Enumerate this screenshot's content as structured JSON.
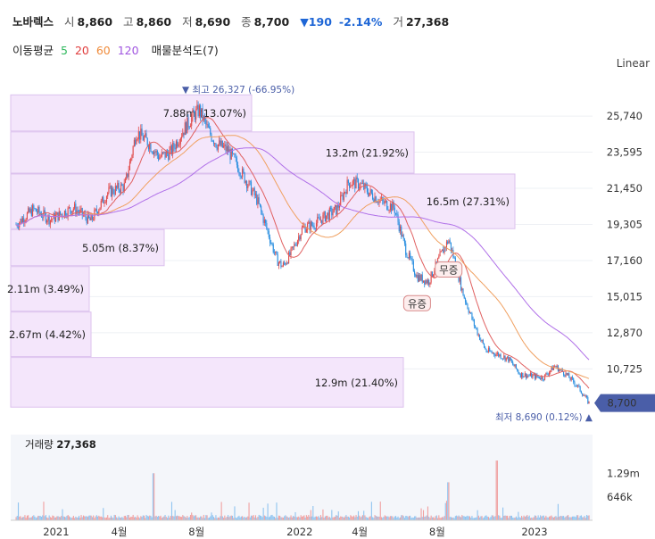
{
  "header": {
    "name": "노바렉스",
    "open_label": "시",
    "open": "8,860",
    "high_label": "고",
    "high": "8,860",
    "low_label": "저",
    "low": "8,690",
    "close_label": "종",
    "close": "8,700",
    "change": "▼190",
    "change_pct": "-2.14%",
    "volume_label": "거",
    "volume": "27,368"
  },
  "ma_legend": {
    "label": "이동평균",
    "periods": [
      "5",
      "20",
      "60",
      "120"
    ],
    "colors": [
      "#2eb85c",
      "#e03c3c",
      "#f08c3c",
      "#a055e0"
    ],
    "volume_profile_label": "매물분석도(7)"
  },
  "scale_label": "Linear",
  "colors": {
    "up": "#e04a4a",
    "down": "#2a8fe0",
    "profile": "#f4e6fb",
    "profile_border": "#dcc2ee",
    "ma20": "#e06060",
    "ma60": "#f0a060",
    "ma120": "#b070e8",
    "current_badge": "#4a5ea8"
  },
  "chart_data": {
    "type": "candlestick",
    "price_ticks": [
      "25,740",
      "23,595",
      "21,450",
      "19,305",
      "17,160",
      "15,015",
      "12,870",
      "10,725"
    ],
    "ylim": [
      8200,
      27600
    ],
    "x_ticks": [
      "2021",
      "4월",
      "8월",
      "2022",
      "4월",
      "8월",
      "2023"
    ],
    "series_close": [
      {
        "t": 0.0,
        "v": 19300
      },
      {
        "t": 0.03,
        "v": 20200
      },
      {
        "t": 0.06,
        "v": 19600
      },
      {
        "t": 0.1,
        "v": 20300
      },
      {
        "t": 0.13,
        "v": 19500
      },
      {
        "t": 0.16,
        "v": 21200
      },
      {
        "t": 0.19,
        "v": 21600
      },
      {
        "t": 0.21,
        "v": 24800
      },
      {
        "t": 0.23,
        "v": 24200
      },
      {
        "t": 0.25,
        "v": 23300
      },
      {
        "t": 0.27,
        "v": 23600
      },
      {
        "t": 0.29,
        "v": 24800
      },
      {
        "t": 0.31,
        "v": 25800
      },
      {
        "t": 0.32,
        "v": 26100
      },
      {
        "t": 0.335,
        "v": 24900
      },
      {
        "t": 0.35,
        "v": 24100
      },
      {
        "t": 0.37,
        "v": 23700
      },
      {
        "t": 0.39,
        "v": 22600
      },
      {
        "t": 0.41,
        "v": 21400
      },
      {
        "t": 0.42,
        "v": 20800
      },
      {
        "t": 0.44,
        "v": 18800
      },
      {
        "t": 0.455,
        "v": 17200
      },
      {
        "t": 0.465,
        "v": 16800
      },
      {
        "t": 0.48,
        "v": 17600
      },
      {
        "t": 0.5,
        "v": 19100
      },
      {
        "t": 0.52,
        "v": 19300
      },
      {
        "t": 0.54,
        "v": 19800
      },
      {
        "t": 0.56,
        "v": 20200
      },
      {
        "t": 0.58,
        "v": 21800
      },
      {
        "t": 0.6,
        "v": 21700
      },
      {
        "t": 0.62,
        "v": 21100
      },
      {
        "t": 0.64,
        "v": 20600
      },
      {
        "t": 0.66,
        "v": 20300
      },
      {
        "t": 0.68,
        "v": 17800
      },
      {
        "t": 0.7,
        "v": 16200
      },
      {
        "t": 0.72,
        "v": 15900
      },
      {
        "t": 0.74,
        "v": 17400
      },
      {
        "t": 0.755,
        "v": 18400
      },
      {
        "t": 0.765,
        "v": 17200
      },
      {
        "t": 0.78,
        "v": 15200
      },
      {
        "t": 0.8,
        "v": 13300
      },
      {
        "t": 0.82,
        "v": 11800
      },
      {
        "t": 0.84,
        "v": 11600
      },
      {
        "t": 0.86,
        "v": 11300
      },
      {
        "t": 0.88,
        "v": 10400
      },
      {
        "t": 0.9,
        "v": 10300
      },
      {
        "t": 0.92,
        "v": 10200
      },
      {
        "t": 0.94,
        "v": 10900
      },
      {
        "t": 0.96,
        "v": 10400
      },
      {
        "t": 0.98,
        "v": 9700
      },
      {
        "t": 1.0,
        "v": 8700
      }
    ],
    "volume_profile": [
      {
        "price_from": 24800,
        "price_to": 27000,
        "label": "7.88m (13.07%)"
      },
      {
        "price_from": 22300,
        "price_to": 24800,
        "label": "13.2m (21.92%)"
      },
      {
        "price_from": 19000,
        "price_to": 22300,
        "label": "16.5m (27.31%)"
      },
      {
        "price_from": 16800,
        "price_to": 19000,
        "label": "5.05m (8.37%)"
      },
      {
        "price_from": 14100,
        "price_to": 16800,
        "label": "2.11m (3.49%)"
      },
      {
        "price_from": 11400,
        "price_to": 14100,
        "label": "2.67m (4.42%)"
      },
      {
        "price_from": 8400,
        "price_to": 11400,
        "label": "12.9m (21.40%)"
      }
    ],
    "max_label": "▼ 최고 26,327 (-66.95%)",
    "min_label": "최저 8,690 (0.12%) ▲",
    "current_price": "8,700",
    "annotations": [
      "무증",
      "유증"
    ],
    "volume_title_label": "거래량",
    "volume_title_value": "27,368",
    "volume_ticks": [
      "1.29m",
      "646k"
    ],
    "volume_ylim": [
      0,
      1800000
    ]
  }
}
